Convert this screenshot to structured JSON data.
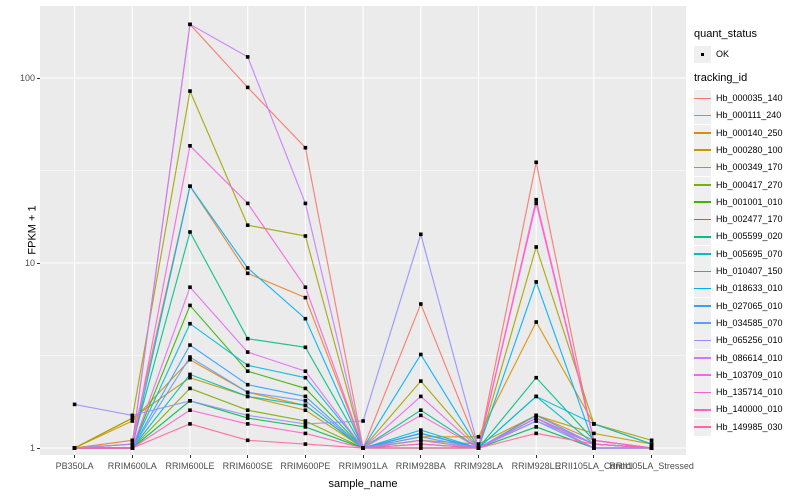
{
  "chart_data": {
    "type": "line",
    "title": "",
    "xlabel": "sample_name",
    "ylabel": "FPKM + 1",
    "y_scale": "log10",
    "y_ticks": [
      1,
      10,
      100
    ],
    "y_minor_ticks": [
      3.1623,
      31.623
    ],
    "ylim_log": [
      0.97,
      230
    ],
    "grid": "on",
    "panel_bg": "#EBEBEB",
    "grid_color": "#FFFFFF",
    "point_color": "#000000",
    "tick_label_color": "#4D4D4D",
    "legend_position": "right",
    "legend": {
      "quant_status_title": "quant_status",
      "quant_status_items": [
        {
          "label": "OK",
          "symbol": "point"
        }
      ],
      "tracking_id_title": "tracking_id"
    },
    "x_categories": [
      "PB350LA",
      "RRIM600LA",
      "RRIM600LE",
      "RRIM600SE",
      "RRIM600PE",
      "RRIM901LA",
      "RRIM928BA",
      "RRIM928LA",
      "RRIM928LE",
      "RRII105LA_Control",
      "RRII105LA_Stressed"
    ],
    "series": [
      {
        "name": "Hb_000035_140",
        "color": "#F8766D",
        "values": [
          1.0,
          1.05,
          195,
          89,
          42,
          1.0,
          6.0,
          1.0,
          35,
          1.05,
          1.0
        ]
      },
      {
        "name": "Hb_000111_240",
        "color": "#EA8331",
        "values": [
          1.0,
          1.1,
          26,
          8.8,
          6.5,
          1.0,
          1.2,
          1.0,
          1.5,
          1.1,
          1.0
        ]
      },
      {
        "name": "Hb_000140_250",
        "color": "#D89000",
        "values": [
          1.0,
          1.4,
          3.0,
          2.0,
          1.7,
          1.0,
          1.15,
          1.15,
          4.8,
          1.35,
          1.05
        ]
      },
      {
        "name": "Hb_000280_100",
        "color": "#C09B00",
        "values": [
          1.0,
          1.45,
          2.4,
          1.9,
          1.6,
          1.0,
          1.1,
          1.05,
          1.5,
          1.2,
          1.05
        ]
      },
      {
        "name": "Hb_000349_170",
        "color": "#A3A500",
        "values": [
          1.0,
          1.45,
          85,
          16,
          14,
          1.0,
          2.3,
          1.0,
          12.2,
          1.35,
          1.1
        ]
      },
      {
        "name": "Hb_000417_270",
        "color": "#7CAE00",
        "values": [
          1.0,
          1.0,
          2.1,
          1.6,
          1.4,
          1.0,
          1.05,
          1.0,
          1.45,
          1.0,
          1.0
        ]
      },
      {
        "name": "Hb_001001_010",
        "color": "#39B600",
        "values": [
          1.0,
          1.0,
          5.9,
          2.6,
          2.1,
          1.0,
          1.1,
          1.0,
          1.45,
          1.05,
          1.0
        ]
      },
      {
        "name": "Hb_002477_170",
        "color": "#00BB4E",
        "values": [
          1.0,
          1.0,
          1.8,
          1.45,
          1.3,
          1.0,
          1.0,
          1.0,
          1.3,
          1.0,
          1.0
        ]
      },
      {
        "name": "Hb_005599_020",
        "color": "#00C087",
        "values": [
          1.0,
          1.05,
          14.7,
          3.9,
          3.5,
          1.0,
          1.6,
          1.0,
          2.4,
          1.1,
          1.0
        ]
      },
      {
        "name": "Hb_005695_070",
        "color": "#00C0B8",
        "values": [
          1.0,
          1.0,
          2.5,
          1.9,
          1.7,
          1.0,
          1.2,
          1.0,
          1.9,
          1.05,
          1.0
        ]
      },
      {
        "name": "Hb_010407_150",
        "color": "#00BAE0",
        "values": [
          1.0,
          1.0,
          4.7,
          2.8,
          2.4,
          1.0,
          1.25,
          1.0,
          1.9,
          1.35,
          1.05
        ]
      },
      {
        "name": "Hb_018633_010",
        "color": "#00B0F6",
        "values": [
          1.0,
          1.0,
          26,
          9.4,
          5.0,
          1.0,
          3.2,
          1.0,
          7.9,
          1.05,
          1.0
        ]
      },
      {
        "name": "Hb_027065_010",
        "color": "#35A2FF",
        "values": [
          1.0,
          1.0,
          3.6,
          2.2,
          1.9,
          1.0,
          1.2,
          1.0,
          1.5,
          1.05,
          1.0
        ]
      },
      {
        "name": "Hb_034585_070",
        "color": "#619CFF",
        "values": [
          1.0,
          1.0,
          3.1,
          2.0,
          1.8,
          1.0,
          1.15,
          1.0,
          1.4,
          1.0,
          1.0
        ]
      },
      {
        "name": "Hb_065256_010",
        "color": "#9590FF",
        "values": [
          1.72,
          1.5,
          1.8,
          1.5,
          1.35,
          1.4,
          14.3,
          1.0,
          1.4,
          1.05,
          1.0
        ]
      },
      {
        "name": "Hb_086614_010",
        "color": "#C77CFF",
        "values": [
          1.0,
          1.05,
          195,
          130,
          21,
          1.0,
          1.1,
          1.0,
          1.45,
          1.0,
          1.0
        ]
      },
      {
        "name": "Hb_103709_010",
        "color": "#E76BF3",
        "values": [
          1.0,
          1.0,
          7.4,
          3.3,
          2.6,
          1.0,
          1.9,
          1.0,
          1.45,
          1.05,
          1.0
        ]
      },
      {
        "name": "Hb_135714_010",
        "color": "#FA62DB",
        "values": [
          1.0,
          1.0,
          43,
          21,
          7.4,
          1.0,
          1.5,
          1.0,
          21,
          1.1,
          1.0
        ]
      },
      {
        "name": "Hb_140000_010",
        "color": "#FF61C9",
        "values": [
          1.0,
          1.0,
          1.6,
          1.35,
          1.2,
          1.0,
          1.05,
          1.0,
          22,
          1.1,
          1.0
        ]
      },
      {
        "name": "Hb_149985_030",
        "color": "#FF689E",
        "values": [
          1.0,
          1.0,
          1.35,
          1.1,
          1.05,
          1.0,
          1.0,
          1.0,
          1.2,
          1.05,
          1.0
        ]
      }
    ]
  }
}
